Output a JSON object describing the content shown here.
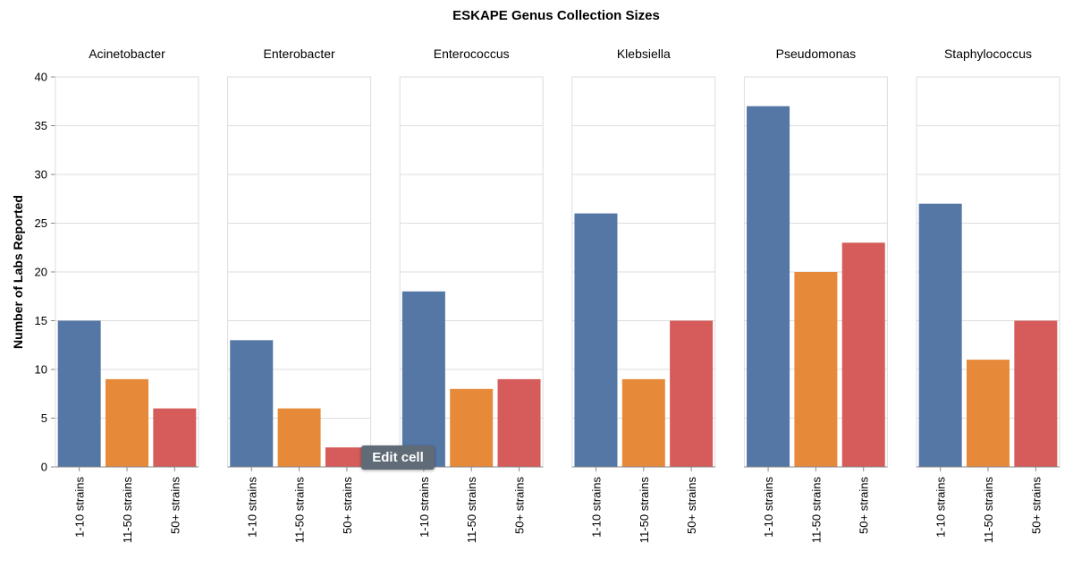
{
  "chart_data": {
    "type": "bar",
    "title": "ESKAPE Genus Collection Sizes",
    "ylabel": "Number of Labs Reported",
    "ylim": [
      0,
      40
    ],
    "yticks": [
      0,
      5,
      10,
      15,
      20,
      25,
      30,
      35,
      40
    ],
    "grid": true,
    "categories": [
      "1-10 strains",
      "11-50 strains",
      "50+ strains"
    ],
    "colors": [
      "#5577a5",
      "#e68a3a",
      "#d55c5a"
    ],
    "facets": [
      {
        "name": "Acinetobacter",
        "values": [
          15,
          9,
          6
        ]
      },
      {
        "name": "Enterobacter",
        "values": [
          13,
          6,
          2
        ]
      },
      {
        "name": "Enterococcus",
        "values": [
          18,
          8,
          9
        ]
      },
      {
        "name": "Klebsiella",
        "values": [
          26,
          9,
          15
        ]
      },
      {
        "name": "Pseudomonas",
        "values": [
          37,
          20,
          23
        ]
      },
      {
        "name": "Staphylococcus",
        "values": [
          27,
          11,
          15
        ]
      }
    ]
  },
  "tooltip": {
    "label": "Edit cell"
  }
}
